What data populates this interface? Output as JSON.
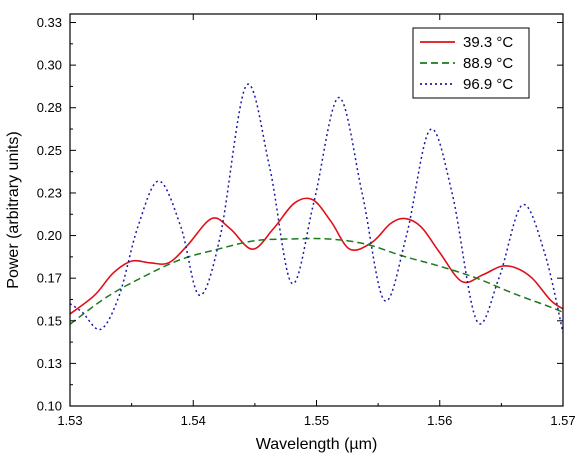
{
  "chart_data": {
    "type": "line",
    "xlabel": "Wavelength (µm)",
    "ylabel": "Power (arbitrary units)",
    "xlim": [
      1.53,
      1.57
    ],
    "ylim": [
      0.1,
      0.33
    ],
    "x_ticks": [
      1.53,
      1.54,
      1.55,
      1.56,
      1.57
    ],
    "x_tick_labels": [
      "1.53",
      "1.54",
      "1.55",
      "1.56",
      "1.57"
    ],
    "y_ticks": [
      0.1,
      0.125,
      0.15,
      0.175,
      0.2,
      0.225,
      0.25,
      0.275,
      0.3,
      0.325
    ],
    "y_tick_labels": [
      "0.10",
      "0.13",
      "0.15",
      "0.17",
      "0.20",
      "0.23",
      "0.25",
      "0.28",
      "0.30",
      "0.33"
    ],
    "grid": false,
    "legend_position": "top-right",
    "series": [
      {
        "name": "39.3 °C",
        "color": "#e0101a",
        "style": "solid",
        "x": [
          1.53,
          1.532,
          1.5335,
          1.535,
          1.5365,
          1.538,
          1.5395,
          1.5415,
          1.543,
          1.5448,
          1.5465,
          1.5482,
          1.5497,
          1.5512,
          1.5527,
          1.5545,
          1.556,
          1.5572,
          1.5585,
          1.56,
          1.5618,
          1.5635,
          1.565,
          1.5662,
          1.5675,
          1.569,
          1.57
        ],
        "y": [
          0.154,
          0.165,
          0.178,
          0.185,
          0.184,
          0.184,
          0.194,
          0.21,
          0.204,
          0.192,
          0.204,
          0.219,
          0.221,
          0.208,
          0.192,
          0.196,
          0.207,
          0.21,
          0.205,
          0.19,
          0.173,
          0.177,
          0.182,
          0.181,
          0.175,
          0.162,
          0.157
        ]
      },
      {
        "name": "88.9 °C",
        "color": "#1f7a1f",
        "style": "dashed",
        "x": [
          1.53,
          1.533,
          1.536,
          1.539,
          1.542,
          1.545,
          1.548,
          1.551,
          1.554,
          1.557,
          1.56,
          1.563,
          1.566,
          1.569,
          1.57
        ],
        "y": [
          0.148,
          0.164,
          0.176,
          0.186,
          0.192,
          0.197,
          0.198,
          0.198,
          0.195,
          0.188,
          0.182,
          0.175,
          0.166,
          0.158,
          0.155
        ]
      },
      {
        "name": "96.9 °C",
        "color": "#1a1aa8",
        "style": "dotted",
        "x": [
          1.53,
          1.531,
          1.5325,
          1.534,
          1.5355,
          1.5372,
          1.539,
          1.5405,
          1.5422,
          1.5443,
          1.5462,
          1.548,
          1.5498,
          1.5518,
          1.5537,
          1.5555,
          1.5573,
          1.5592,
          1.561,
          1.563,
          1.5648,
          1.5667,
          1.5685,
          1.57
        ],
        "y": [
          0.16,
          0.155,
          0.145,
          0.165,
          0.205,
          0.232,
          0.205,
          0.165,
          0.2,
          0.288,
          0.24,
          0.172,
          0.22,
          0.281,
          0.225,
          0.162,
          0.2,
          0.262,
          0.225,
          0.15,
          0.175,
          0.218,
          0.19,
          0.143
        ]
      }
    ]
  }
}
